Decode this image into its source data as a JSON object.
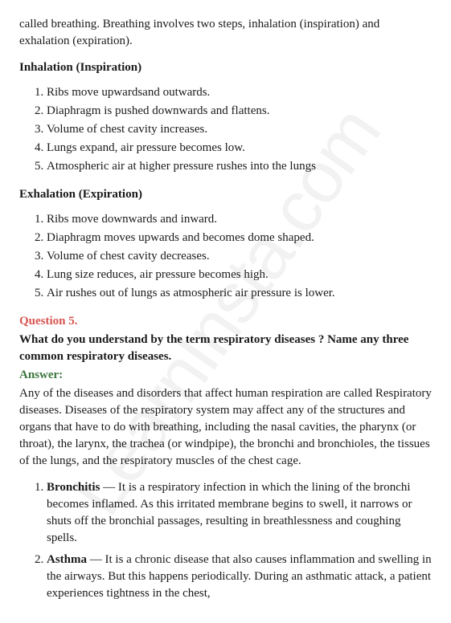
{
  "watermark": "LearnInsta.com",
  "intro": "called breathing. Breathing involves two steps, inhalation (inspiration) and exhalation (expiration).",
  "sections": {
    "inhalation": {
      "title": "Inhalation (Inspiration)",
      "items": [
        "Ribs move upwardsand outwards.",
        "Diaphragm is pushed downwards and flattens.",
        "Volume of chest cavity increases.",
        "Lungs expand, air pressure becomes low.",
        "Atmospheric air at higher pressure rushes into the lungs"
      ]
    },
    "exhalation": {
      "title": "Exhalation (Expiration)",
      "items": [
        "Ribs move downwards and inward.",
        "Diaphragm moves upwards and becomes dome shaped.",
        "Volume of chest cavity decreases.",
        "Lung size reduces, air pressure becomes high.",
        "Air rushes out of lungs as atmospheric air pressure is lower."
      ]
    }
  },
  "qa": {
    "question_label": "Question 5.",
    "question_text": "What do you understand by the term respiratory diseases ? Name any three common respiratory diseases.",
    "answer_label": "Answer:",
    "answer_body": "Any of the diseases and disorders that affect human respiration are called Respiratory diseases. Diseases of the respiratory system may affect any of the structures and organs that have to do with breathing, including the nasal cavities, the pharynx (or throat), the larynx, the trachea (or windpipe), the bronchi and bronchioles, the tissues of the lungs, and the respiratory muscles of the chest cage.",
    "diseases": [
      {
        "term": "Bronchitis",
        "desc": " — It is a respiratory infection in which the lining of the bronchi becomes inflamed. As this irritated membrane begins to swell, it narrows or shuts off the bronchial passages, resulting in breathlessness and coughing spells."
      },
      {
        "term": "Asthma",
        "desc": " — It is a chronic disease that also causes inflammation and swelling in the airways. But this happens periodically. During an asthmatic attack, a patient experiences tightness in the chest,"
      }
    ]
  },
  "colors": {
    "question": "#d9534f",
    "answer": "#3c763d",
    "text": "#1a1a1a",
    "watermark": "rgba(0,0,0,0.05)"
  }
}
